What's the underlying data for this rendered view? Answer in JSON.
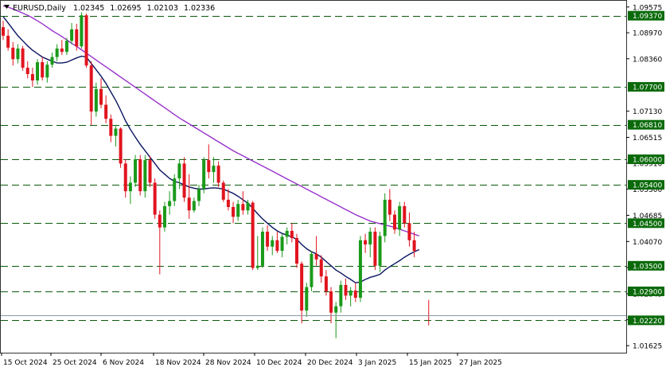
{
  "header": {
    "symbol": "EURUSD,Daily",
    "open": "1.02345",
    "high": "1.02695",
    "low": "1.02103",
    "close": "1.02336"
  },
  "colors": {
    "bull": "#1a9a1a",
    "bear": "#e0141e",
    "fast_ma": "#0b1560",
    "slow_ma": "#9933cc",
    "level_line": "#0a5a0a",
    "label_bg": "#0a6a0a",
    "label_text": "#ffffff"
  },
  "chart_data": {
    "type": "candlestick",
    "symbol": "EURUSD",
    "timeframe": "Daily",
    "ylim": [
      1.0146,
      1.0972
    ],
    "y_ticks": [
      "1.09575",
      "1.08970",
      "1.08360",
      "1.07130",
      "1.06515",
      "1.05910",
      "1.05300",
      "1.04685",
      "1.04070",
      "1.03460",
      "1.02845",
      "1.02235",
      "1.01625"
    ],
    "x_ticks": [
      "15 Oct 2024",
      "25 Oct 2024",
      "6 Nov 2024",
      "18 Nov 2024",
      "28 Nov 2024",
      "10 Dec 2024",
      "20 Dec 2024",
      "3 Jan 2025",
      "15 Jan 2025",
      "27 Jan 2025"
    ],
    "levels": [
      {
        "value": 1.0937,
        "label": "1.09370"
      },
      {
        "value": 1.077,
        "label": "1.07700"
      },
      {
        "value": 1.0681,
        "label": "1.06810"
      },
      {
        "value": 1.06,
        "label": "1.06000"
      },
      {
        "value": 1.054,
        "label": "1.05400"
      },
      {
        "value": 1.045,
        "label": "1.04500"
      },
      {
        "value": 1.035,
        "label": "1.03500"
      },
      {
        "value": 1.029,
        "label": "1.02900"
      },
      {
        "value": 1.0222,
        "label": "1.02220"
      }
    ],
    "current_price": "1.02336",
    "candles": [
      {
        "o": 1.091,
        "h": 1.0925,
        "l": 1.088,
        "c": 1.089
      },
      {
        "o": 1.089,
        "h": 1.0905,
        "l": 1.0855,
        "c": 1.0862
      },
      {
        "o": 1.0862,
        "h": 1.0875,
        "l": 1.082,
        "c": 1.0835
      },
      {
        "o": 1.0835,
        "h": 1.087,
        "l": 1.0825,
        "c": 1.086
      },
      {
        "o": 1.086,
        "h": 1.0866,
        "l": 1.0808,
        "c": 1.0815
      },
      {
        "o": 1.0815,
        "h": 1.083,
        "l": 1.079,
        "c": 1.08
      },
      {
        "o": 1.08,
        "h": 1.0815,
        "l": 1.077,
        "c": 1.0785
      },
      {
        "o": 1.0785,
        "h": 1.0835,
        "l": 1.0775,
        "c": 1.0828
      },
      {
        "o": 1.0828,
        "h": 1.084,
        "l": 1.0785,
        "c": 1.0792
      },
      {
        "o": 1.0792,
        "h": 1.083,
        "l": 1.078,
        "c": 1.0822
      },
      {
        "o": 1.0822,
        "h": 1.085,
        "l": 1.0815,
        "c": 1.084
      },
      {
        "o": 1.084,
        "h": 1.087,
        "l": 1.083,
        "c": 1.086
      },
      {
        "o": 1.086,
        "h": 1.088,
        "l": 1.0845,
        "c": 1.0852
      },
      {
        "o": 1.0852,
        "h": 1.0885,
        "l": 1.0845,
        "c": 1.0878
      },
      {
        "o": 1.0878,
        "h": 1.092,
        "l": 1.087,
        "c": 1.0905
      },
      {
        "o": 1.0905,
        "h": 1.0918,
        "l": 1.0855,
        "c": 1.0865
      },
      {
        "o": 1.0865,
        "h": 1.0945,
        "l": 1.086,
        "c": 1.0938
      },
      {
        "o": 1.0938,
        "h": 1.0942,
        "l": 1.0815,
        "c": 1.082
      },
      {
        "o": 1.082,
        "h": 1.083,
        "l": 1.068,
        "c": 1.0712
      },
      {
        "o": 1.0712,
        "h": 1.078,
        "l": 1.07,
        "c": 1.0765
      },
      {
        "o": 1.0765,
        "h": 1.079,
        "l": 1.072,
        "c": 1.0728
      },
      {
        "o": 1.0728,
        "h": 1.075,
        "l": 1.0685,
        "c": 1.0695
      },
      {
        "o": 1.0695,
        "h": 1.0705,
        "l": 1.064,
        "c": 1.0655
      },
      {
        "o": 1.0655,
        "h": 1.068,
        "l": 1.063,
        "c": 1.0672
      },
      {
        "o": 1.0672,
        "h": 1.0675,
        "l": 1.058,
        "c": 1.059
      },
      {
        "o": 1.059,
        "h": 1.06,
        "l": 1.051,
        "c": 1.0525
      },
      {
        "o": 1.0525,
        "h": 1.056,
        "l": 1.0495,
        "c": 1.0545
      },
      {
        "o": 1.0545,
        "h": 1.061,
        "l": 1.0535,
        "c": 1.06
      },
      {
        "o": 1.06,
        "h": 1.061,
        "l": 1.0515,
        "c": 1.0525
      },
      {
        "o": 1.0525,
        "h": 1.061,
        "l": 1.051,
        "c": 1.0598
      },
      {
        "o": 1.0598,
        "h": 1.0608,
        "l": 1.0535,
        "c": 1.0545
      },
      {
        "o": 1.0545,
        "h": 1.0555,
        "l": 1.046,
        "c": 1.047
      },
      {
        "o": 1.047,
        "h": 1.048,
        "l": 1.033,
        "c": 1.044
      },
      {
        "o": 1.044,
        "h": 1.05,
        "l": 1.043,
        "c": 1.049
      },
      {
        "o": 1.049,
        "h": 1.0525,
        "l": 1.047,
        "c": 1.0502
      },
      {
        "o": 1.0502,
        "h": 1.0565,
        "l": 1.049,
        "c": 1.0555
      },
      {
        "o": 1.0555,
        "h": 1.06,
        "l": 1.053,
        "c": 1.059
      },
      {
        "o": 1.059,
        "h": 1.0605,
        "l": 1.05,
        "c": 1.051
      },
      {
        "o": 1.051,
        "h": 1.0565,
        "l": 1.046,
        "c": 1.048
      },
      {
        "o": 1.048,
        "h": 1.051,
        "l": 1.0475,
        "c": 1.0502
      },
      {
        "o": 1.0502,
        "h": 1.054,
        "l": 1.049,
        "c": 1.053
      },
      {
        "o": 1.053,
        "h": 1.0605,
        "l": 1.052,
        "c": 1.0598
      },
      {
        "o": 1.0598,
        "h": 1.0635,
        "l": 1.0555,
        "c": 1.057
      },
      {
        "o": 1.057,
        "h": 1.0605,
        "l": 1.0545,
        "c": 1.0585
      },
      {
        "o": 1.0585,
        "h": 1.0595,
        "l": 1.0535,
        "c": 1.0545
      },
      {
        "o": 1.0545,
        "h": 1.055,
        "l": 1.05,
        "c": 1.0505
      },
      {
        "o": 1.0505,
        "h": 1.053,
        "l": 1.048,
        "c": 1.0488
      },
      {
        "o": 1.0488,
        "h": 1.05,
        "l": 1.045,
        "c": 1.0465
      },
      {
        "o": 1.0465,
        "h": 1.0505,
        "l": 1.0455,
        "c": 1.0495
      },
      {
        "o": 1.0495,
        "h": 1.0525,
        "l": 1.047,
        "c": 1.048
      },
      {
        "o": 1.048,
        "h": 1.0505,
        "l": 1.047,
        "c": 1.0498
      },
      {
        "o": 1.0498,
        "h": 1.0502,
        "l": 1.034,
        "c": 1.0345
      },
      {
        "o": 1.0345,
        "h": 1.042,
        "l": 1.034,
        "c": 1.035
      },
      {
        "o": 1.035,
        "h": 1.044,
        "l": 1.0345,
        "c": 1.043
      },
      {
        "o": 1.043,
        "h": 1.0445,
        "l": 1.0385,
        "c": 1.0395
      },
      {
        "o": 1.0395,
        "h": 1.042,
        "l": 1.0375,
        "c": 1.041
      },
      {
        "o": 1.041,
        "h": 1.043,
        "l": 1.038,
        "c": 1.0385
      },
      {
        "o": 1.0385,
        "h": 1.0425,
        "l": 1.037,
        "c": 1.0418
      },
      {
        "o": 1.0418,
        "h": 1.044,
        "l": 1.04,
        "c": 1.0432
      },
      {
        "o": 1.0432,
        "h": 1.045,
        "l": 1.0405,
        "c": 1.0415
      },
      {
        "o": 1.0415,
        "h": 1.0425,
        "l": 1.0345,
        "c": 1.0355
      },
      {
        "o": 1.0355,
        "h": 1.036,
        "l": 1.0215,
        "c": 1.0245
      },
      {
        "o": 1.0245,
        "h": 1.031,
        "l": 1.023,
        "c": 1.03
      },
      {
        "o": 1.03,
        "h": 1.0385,
        "l": 1.029,
        "c": 1.0378
      },
      {
        "o": 1.0378,
        "h": 1.042,
        "l": 1.035,
        "c": 1.0365
      },
      {
        "o": 1.0365,
        "h": 1.0375,
        "l": 1.031,
        "c": 1.0325
      },
      {
        "o": 1.0325,
        "h": 1.034,
        "l": 1.028,
        "c": 1.029
      },
      {
        "o": 1.029,
        "h": 1.03,
        "l": 1.0215,
        "c": 1.024
      },
      {
        "o": 1.024,
        "h": 1.0265,
        "l": 1.018,
        "c": 1.0255
      },
      {
        "o": 1.0255,
        "h": 1.0315,
        "l": 1.024,
        "c": 1.0305
      },
      {
        "o": 1.0305,
        "h": 1.032,
        "l": 1.027,
        "c": 1.028
      },
      {
        "o": 1.028,
        "h": 1.03,
        "l": 1.0255,
        "c": 1.0292
      },
      {
        "o": 1.0292,
        "h": 1.031,
        "l": 1.0265,
        "c": 1.0275
      },
      {
        "o": 1.0275,
        "h": 1.042,
        "l": 1.0265,
        "c": 1.041
      },
      {
        "o": 1.041,
        "h": 1.0425,
        "l": 1.038,
        "c": 1.04
      },
      {
        "o": 1.04,
        "h": 1.044,
        "l": 1.037,
        "c": 1.043
      },
      {
        "o": 1.043,
        "h": 1.044,
        "l": 1.034,
        "c": 1.035
      },
      {
        "o": 1.035,
        "h": 1.043,
        "l": 1.0335,
        "c": 1.042
      },
      {
        "o": 1.042,
        "h": 1.052,
        "l": 1.0405,
        "c": 1.0505
      },
      {
        "o": 1.0505,
        "h": 1.053,
        "l": 1.0455,
        "c": 1.047
      },
      {
        "o": 1.047,
        "h": 1.048,
        "l": 1.0425,
        "c": 1.0435
      },
      {
        "o": 1.0435,
        "h": 1.05,
        "l": 1.042,
        "c": 1.049
      },
      {
        "o": 1.049,
        "h": 1.05,
        "l": 1.044,
        "c": 1.045
      },
      {
        "o": 1.045,
        "h": 1.0475,
        "l": 1.0395,
        "c": 1.041
      },
      {
        "o": 1.041,
        "h": 1.043,
        "l": 1.037,
        "c": 1.0385
      },
      {
        "o": 1.0234,
        "h": 1.027,
        "l": 1.021,
        "c": 1.0233
      }
    ],
    "fast_ma": [
      1.0935,
      1.092,
      1.0905,
      1.089,
      1.0878,
      1.0866,
      1.0856,
      1.0848,
      1.084,
      1.0835,
      1.083,
      1.0826,
      1.0826,
      1.0828,
      1.0833,
      1.0838,
      1.0842,
      1.084,
      1.0825,
      1.081,
      1.0795,
      1.0778,
      1.0758,
      1.0738,
      1.0715,
      1.069,
      1.067,
      1.0652,
      1.0635,
      1.062,
      1.0605,
      1.059,
      1.0575,
      1.0565,
      1.0555,
      1.0548,
      1.0545,
      1.054,
      1.0535,
      1.0532,
      1.053,
      1.053,
      1.0532,
      1.0533,
      1.0532,
      1.053,
      1.0525,
      1.052,
      1.0513,
      1.0505,
      1.0497,
      1.0485,
      1.0472,
      1.046,
      1.045,
      1.044,
      1.0432,
      1.0426,
      1.0422,
      1.0418,
      1.0412,
      1.04,
      1.039,
      1.0383,
      1.0378,
      1.037,
      1.036,
      1.035,
      1.034,
      1.0333,
      1.0325,
      1.0318,
      1.031,
      1.0312,
      1.0318,
      1.0323,
      1.0326,
      1.033,
      1.034,
      1.0348,
      1.0355,
      1.0362,
      1.037,
      1.0377,
      1.0383,
      1.0388
    ],
    "slow_ma": [
      1.096,
      1.0957,
      1.0953,
      1.0948,
      1.0943,
      1.0938,
      1.0932,
      1.0925,
      1.0918,
      1.091,
      1.0902,
      1.0895,
      1.0888,
      1.088,
      1.0872,
      1.0865,
      1.0857,
      1.0849,
      1.0841,
      1.0833,
      1.0825,
      1.0817,
      1.0809,
      1.0801,
      1.0793,
      1.0785,
      1.0777,
      1.0769,
      1.0761,
      1.0753,
      1.0745,
      1.0737,
      1.0729,
      1.0721,
      1.0713,
      1.0705,
      1.0697,
      1.069,
      1.0683,
      1.0676,
      1.0669,
      1.0662,
      1.0655,
      1.0648,
      1.0641,
      1.0634,
      1.0627,
      1.062,
      1.0614,
      1.0608,
      1.0602,
      1.0596,
      1.059,
      1.0584,
      1.0578,
      1.0572,
      1.0566,
      1.056,
      1.0554,
      1.0548,
      1.0542,
      1.0536,
      1.053,
      1.0524,
      1.0518,
      1.0512,
      1.0506,
      1.05,
      1.0494,
      1.0488,
      1.0482,
      1.0476,
      1.047,
      1.0465,
      1.046,
      1.0455,
      1.0452,
      1.0449,
      1.0446,
      1.0443,
      1.044,
      1.0436,
      1.0432,
      1.0428,
      1.0424,
      1.042
    ]
  }
}
